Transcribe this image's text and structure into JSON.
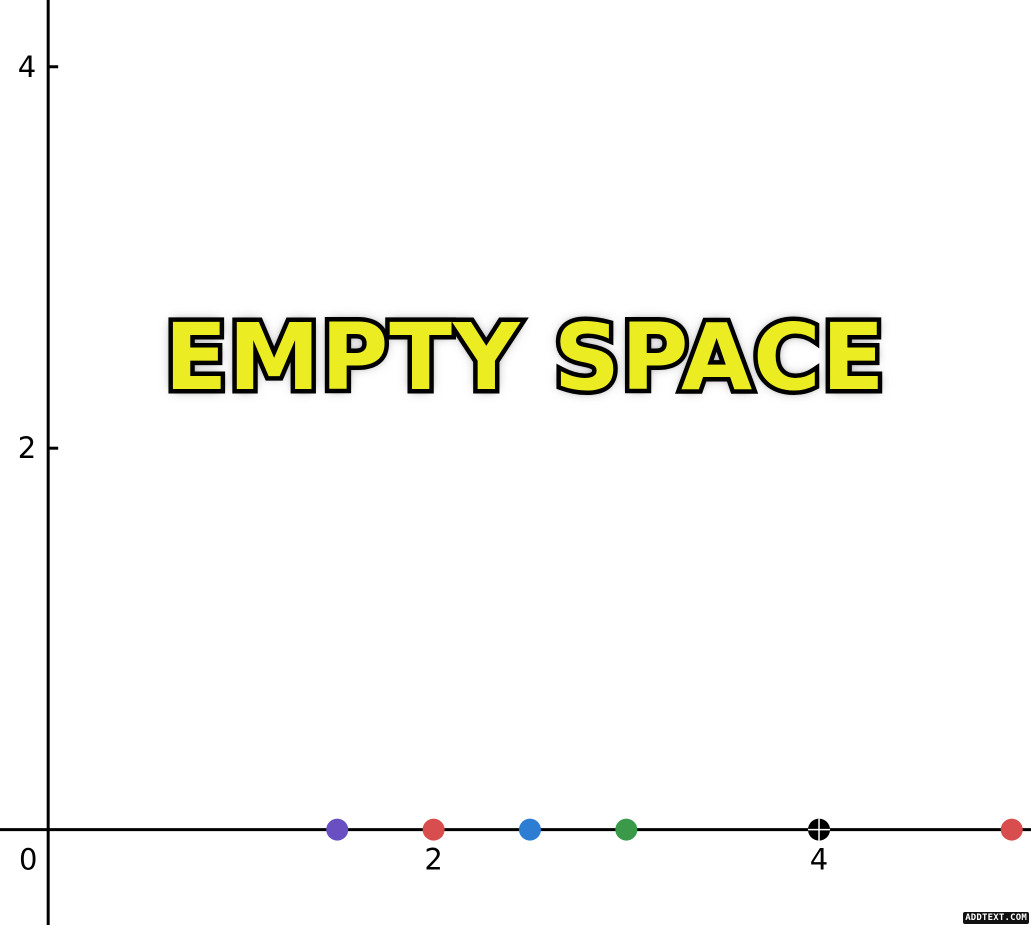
{
  "chart_data": {
    "type": "scatter",
    "xlim": [
      -0.25,
      5.1
    ],
    "ylim": [
      -0.5,
      4.35
    ],
    "x_ticks": [
      2,
      4
    ],
    "y_ticks": [
      2,
      4
    ],
    "origin_label": "0",
    "grid": false,
    "series": [
      {
        "color": "#6a4fc2",
        "points": [
          {
            "x": 1.5,
            "y": 0
          }
        ]
      },
      {
        "color": "#d84e4e",
        "points": [
          {
            "x": 2.0,
            "y": 0
          }
        ]
      },
      {
        "color": "#2d7dd2",
        "points": [
          {
            "x": 2.5,
            "y": 0
          }
        ]
      },
      {
        "color": "#3a9a4a",
        "points": [
          {
            "x": 3.0,
            "y": 0
          }
        ]
      },
      {
        "color": "#000000",
        "points": [
          {
            "x": 4.0,
            "y": 0
          }
        ],
        "marker": "crosshair"
      },
      {
        "color": "#d84e4e",
        "points": [
          {
            "x": 5.0,
            "y": 0
          }
        ]
      }
    ]
  },
  "caption": "EMPTY SPACE",
  "watermark": "ADDTEXT.COM"
}
